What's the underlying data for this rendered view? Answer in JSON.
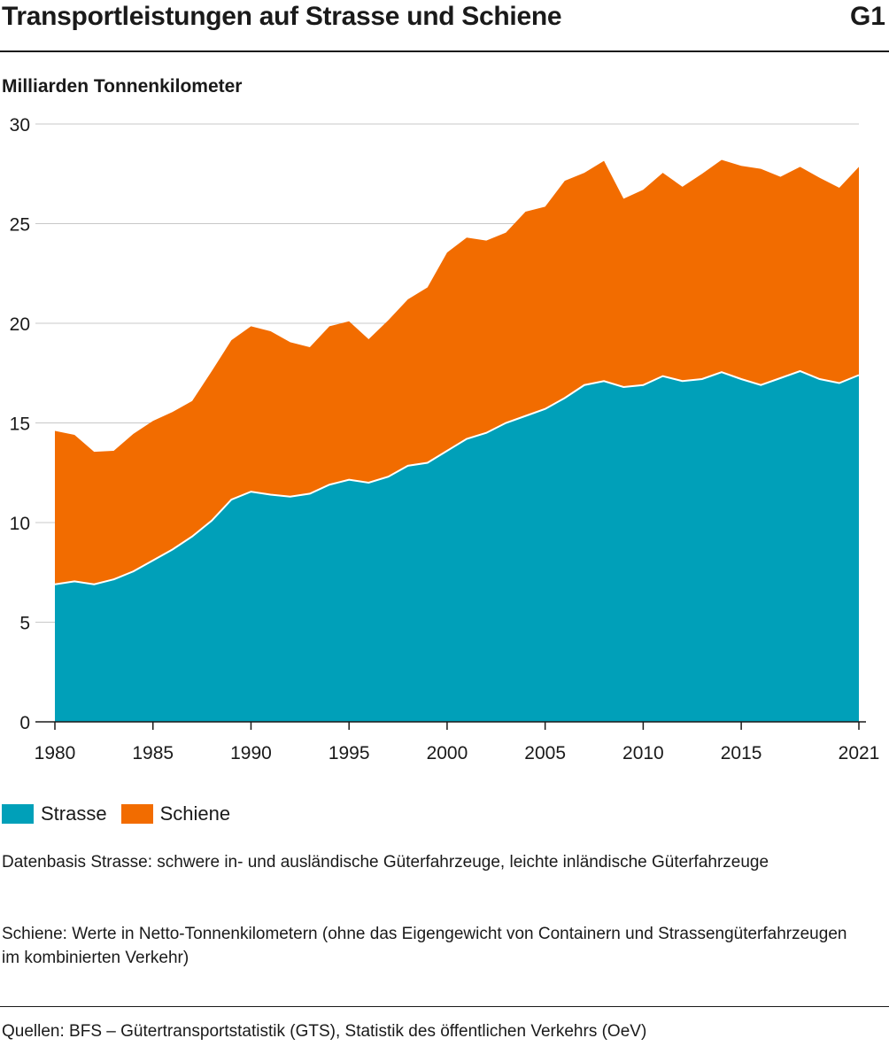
{
  "header": {
    "title": "Transportleistungen auf Strasse und Schiene",
    "code": "G1"
  },
  "unit_label": "Milliarden Tonnenkilometer",
  "chart_data": {
    "type": "area",
    "stacked": true,
    "x": [
      1980,
      1981,
      1982,
      1983,
      1984,
      1985,
      1986,
      1987,
      1988,
      1989,
      1990,
      1991,
      1992,
      1993,
      1994,
      1995,
      1996,
      1997,
      1998,
      1999,
      2000,
      2001,
      2002,
      2003,
      2004,
      2005,
      2006,
      2007,
      2008,
      2009,
      2010,
      2011,
      2012,
      2013,
      2014,
      2015,
      2016,
      2017,
      2018,
      2019,
      2020,
      2021
    ],
    "series": [
      {
        "name": "Strasse",
        "color": "#00a0b9",
        "values": [
          6.9,
          7.05,
          6.9,
          7.15,
          7.55,
          8.1,
          8.65,
          9.3,
          10.1,
          11.15,
          11.55,
          11.4,
          11.3,
          11.45,
          11.9,
          12.15,
          12.0,
          12.3,
          12.85,
          13.0,
          13.6,
          14.2,
          14.5,
          15.0,
          15.35,
          15.7,
          16.25,
          16.9,
          17.1,
          16.8,
          16.9,
          17.35,
          17.1,
          17.2,
          17.55,
          17.2,
          16.9,
          17.25,
          17.6,
          17.2,
          17.0,
          17.4
        ]
      },
      {
        "name": "Schiene",
        "color": "#f26c00",
        "values": [
          7.7,
          7.35,
          6.65,
          6.45,
          6.9,
          7.0,
          6.9,
          6.8,
          7.5,
          8.0,
          8.3,
          8.2,
          7.75,
          7.35,
          7.95,
          7.95,
          7.2,
          7.85,
          8.35,
          8.8,
          9.95,
          10.1,
          9.65,
          9.55,
          10.25,
          10.15,
          10.9,
          10.65,
          11.05,
          9.45,
          9.8,
          10.2,
          9.75,
          10.3,
          10.65,
          10.7,
          10.85,
          10.1,
          10.25,
          10.1,
          9.8,
          10.45
        ]
      }
    ],
    "y_ticks": [
      0,
      5,
      10,
      15,
      20,
      25,
      30
    ],
    "x_ticks": [
      1980,
      1985,
      1990,
      1995,
      2000,
      2005,
      2010,
      2015,
      2021
    ],
    "ylim": [
      0,
      30
    ],
    "xlim": [
      1980,
      2021
    ],
    "grid": true,
    "legend_position": "bottom-left"
  },
  "notes": {
    "note1": "Datenbasis Strasse: schwere in- und ausländische Güterfahrzeuge, leichte inländische Güterfahrzeuge",
    "note2": "Schiene: Werte in Netto-Tonnenkilometern (ohne das Eigengewicht von Containern und Strassengüterfahrzeugen im kombinierten Verkehr)"
  },
  "source": "Quellen: BFS – Gütertransportstatistik (GTS), Statistik des öffentlichen Verkehrs (OeV)"
}
